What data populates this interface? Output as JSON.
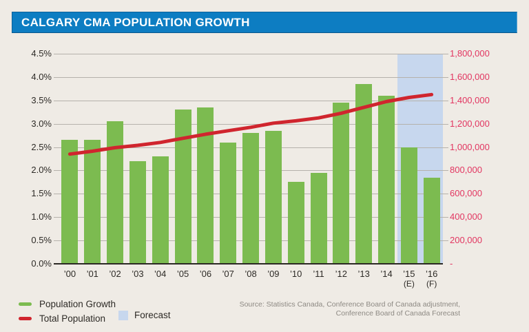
{
  "title": "CALGARY CMA POPULATION GROWTH",
  "colors": {
    "title_bar": "#0D7DC2",
    "bar_green": "#7CBB50",
    "line_red": "#D0252E",
    "right_axis_text": "#E23560",
    "forecast_band": "#C7D7EE",
    "background": "#EFEBE5"
  },
  "legend": {
    "growth_label": "Population Growth",
    "population_label": "Total Population",
    "forecast_label": "Forecast"
  },
  "source": {
    "line1": "Source: Statistics Canada, Conference Board of Canada adjustment,",
    "line2": "Conference Board of Canada Forecast"
  },
  "chart_data": {
    "type": "bar+line",
    "title": "Calgary CMA Population Growth",
    "categories": [
      "’00",
      "’01",
      "’02",
      "’03",
      "’04",
      "’05",
      "’06",
      "’07",
      "’08",
      "’09",
      "’10",
      "’11",
      "’12",
      "’13",
      "’14",
      "’15",
      "’16"
    ],
    "sublabels": [
      "",
      "",
      "",
      "",
      "",
      "",
      "",
      "",
      "",
      "",
      "",
      "",
      "",
      "",
      "",
      "(E)",
      "(F)"
    ],
    "series": [
      {
        "name": "Population Growth",
        "type": "bar",
        "axis": "left",
        "unit": "%",
        "values": [
          2.65,
          2.65,
          3.05,
          2.2,
          2.3,
          3.3,
          3.35,
          2.6,
          2.8,
          2.85,
          1.75,
          1.95,
          3.45,
          3.85,
          3.6,
          2.5,
          1.85
        ]
      },
      {
        "name": "Total Population",
        "type": "line",
        "axis": "right",
        "unit": "persons",
        "values": [
          940000,
          965000,
          995000,
          1015000,
          1040000,
          1075000,
          1110000,
          1140000,
          1170000,
          1205000,
          1225000,
          1250000,
          1290000,
          1340000,
          1390000,
          1425000,
          1450000
        ]
      }
    ],
    "left_axis": {
      "min": 0,
      "max": 4.5,
      "ticks": [
        "4.5%",
        "4.0%",
        "3.5%",
        "3.0%",
        "2.5%",
        "2.0%",
        "1.5%",
        "1.0%",
        "0.5%",
        "0.0%"
      ]
    },
    "right_axis": {
      "min": 0,
      "max": 1800000,
      "ticks": [
        "1,800,000",
        "1,600,000",
        "1,400,000",
        "1,200,000",
        "1,000,000",
        "800,000",
        "600,000",
        "400,000",
        "200,000",
        "-"
      ]
    },
    "forecast_band": {
      "label": "Forecast",
      "categories_covered": [
        "’15",
        "’16"
      ],
      "span": 2
    },
    "grid": true,
    "legend_position": "bottom-left"
  }
}
